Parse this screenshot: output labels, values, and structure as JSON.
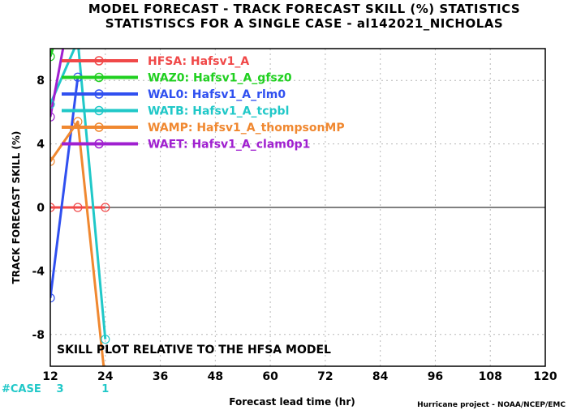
{
  "chart_data": {
    "type": "line",
    "title": "MODEL FORECAST - TRACK FORECAST SKILL (%) STATISTICS",
    "subtitle": "STATISTISCS FOR A SINGLE CASE - al142021_NICHOLAS",
    "xlabel": "Forecast lead time (hr)",
    "ylabel": "TRACK FORECAST SKILL (%)",
    "xlim": [
      12,
      120
    ],
    "ylim": [
      -10,
      10
    ],
    "x_ticks": [
      "12",
      "24",
      "36",
      "48",
      "60",
      "72",
      "84",
      "96",
      "108",
      "120"
    ],
    "y_ticks": [
      "-8",
      "-4",
      "0",
      "4",
      "8"
    ],
    "grid": true,
    "zero_line": true,
    "note": "SKILL PLOT RELATIVE TO THE HFSA MODEL",
    "credit": "Hurricane project - NOAA/NCEP/EMC",
    "case_label": "#CASE",
    "case_counts": [
      {
        "x": 12,
        "label": "3"
      },
      {
        "x": 24,
        "label": "1"
      }
    ],
    "legend_position": "top-left",
    "series": [
      {
        "name": "HFSA: Hafsv1_A",
        "color": "#f04848",
        "x": [
          12,
          18,
          24
        ],
        "y": [
          0,
          0,
          0
        ]
      },
      {
        "name": "WAZ0: Hafsv1_A_gfsz0",
        "color": "#20d020",
        "x": [
          12,
          18
        ],
        "y": [
          9.5,
          15
        ]
      },
      {
        "name": "WAL0: Hafsv1_A_rlm0",
        "color": "#3050f0",
        "x": [
          12,
          18
        ],
        "y": [
          -5.7,
          8.2
        ]
      },
      {
        "name": "WATB: Hafsv1_A_tcpbl",
        "color": "#20c8c8",
        "x": [
          12,
          18,
          24
        ],
        "y": [
          6.5,
          10.5,
          -8.3
        ]
      },
      {
        "name": "WAMP: Hafsv1_A_thompsonMP",
        "color": "#f08830",
        "x": [
          12,
          18,
          24
        ],
        "y": [
          2.9,
          5.4,
          -11
        ]
      },
      {
        "name": "WAET: Hafsv1_A_clam0p1",
        "color": "#a020d0",
        "x": [
          12,
          18
        ],
        "y": [
          5.7,
          15
        ]
      }
    ]
  }
}
